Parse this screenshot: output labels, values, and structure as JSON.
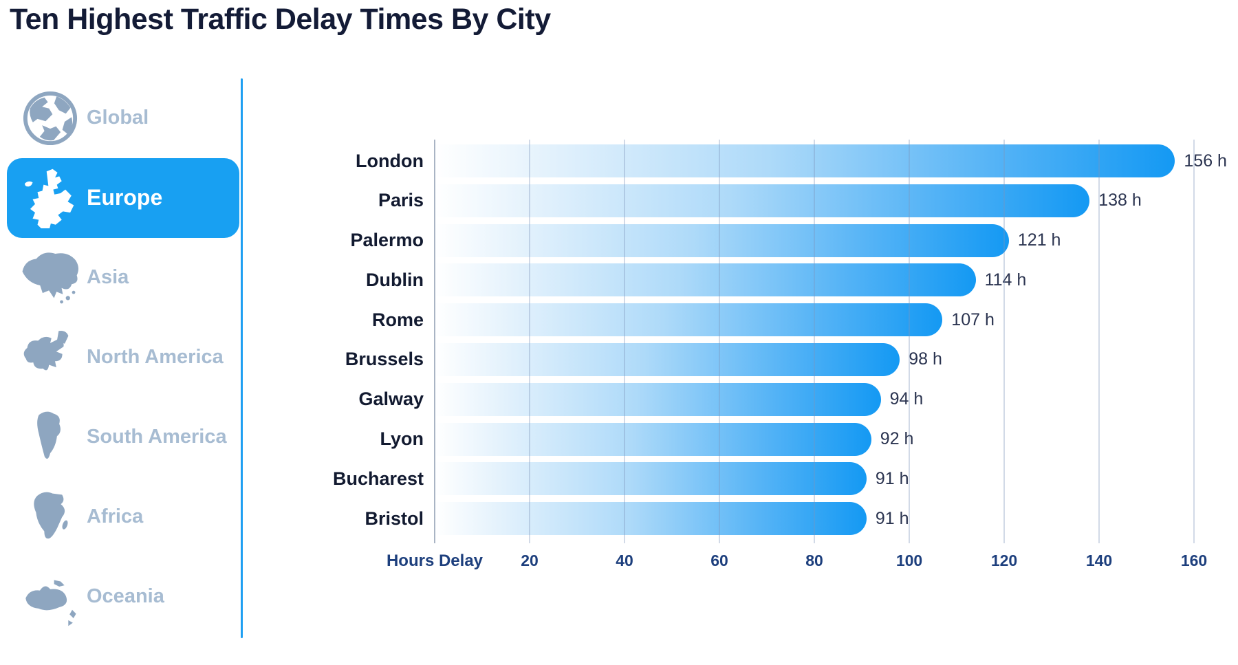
{
  "title": "Ten Highest Traffic Delay Times By City",
  "accent_color": "#18a0f2",
  "sidebar": {
    "items": [
      {
        "label": "Global",
        "icon": "globe-icon",
        "active": false
      },
      {
        "label": "Europe",
        "icon": "europe-map-icon",
        "active": true
      },
      {
        "label": "Asia",
        "icon": "asia-map-icon",
        "active": false
      },
      {
        "label": "North America",
        "icon": "north-america-map-icon",
        "active": false
      },
      {
        "label": "South America",
        "icon": "south-america-map-icon",
        "active": false
      },
      {
        "label": "Africa",
        "icon": "africa-map-icon",
        "active": false
      },
      {
        "label": "Oceania",
        "icon": "oceania-map-icon",
        "active": false
      }
    ]
  },
  "chart_data": {
    "type": "bar",
    "orientation": "horizontal",
    "title": "Ten Highest Traffic Delay Times By City",
    "categories": [
      "London",
      "Paris",
      "Palermo",
      "Dublin",
      "Rome",
      "Brussels",
      "Galway",
      "Lyon",
      "Bucharest",
      "Bristol"
    ],
    "values": [
      156,
      138,
      121,
      114,
      107,
      98,
      94,
      92,
      91,
      91
    ],
    "unit": "h",
    "xlabel": "Hours Delay",
    "xticks": [
      20,
      40,
      60,
      80,
      100,
      120,
      140,
      160
    ],
    "xlim": [
      0,
      160
    ],
    "grid": true,
    "legend": "none",
    "bar_gradient": [
      "#ffffff",
      "#1499f3"
    ],
    "gridline_color": "#aabbd2",
    "tick_label_color": "#1d3f7d",
    "value_label_color": "#2b3450",
    "category_label_color": "#121a30"
  }
}
